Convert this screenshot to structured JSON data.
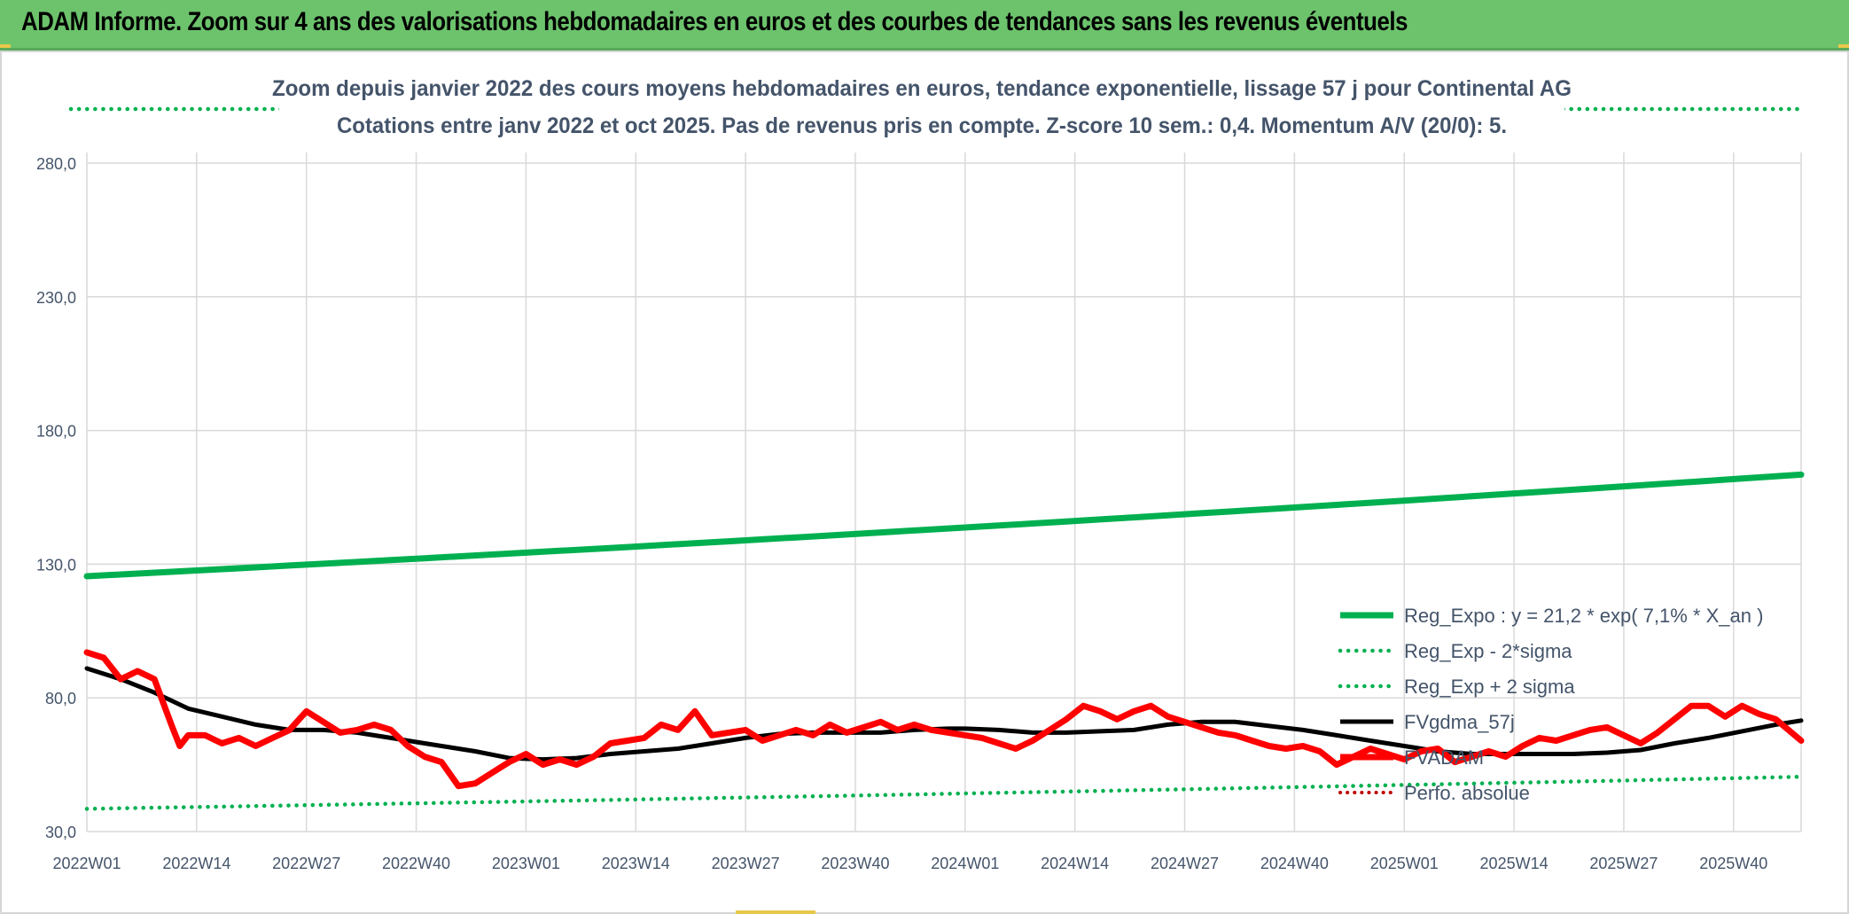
{
  "header": {
    "title": "ADAM Informe. Zoom sur 4 ans des valorisations hebdomadaires en euros et des courbes de tendances sans les revenus éventuels"
  },
  "colors": {
    "header_bg": "#6cc36c",
    "reg_expo": "#00b050",
    "fvadam": "#ff0000",
    "fvgdma": "#000000",
    "perfo": "#c00000",
    "text": "#44546a",
    "grid": "#d9d9d9"
  },
  "chart_data": {
    "type": "line",
    "title_line1": "Zoom depuis janvier 2022 des cours moyens hebdomadaires en euros, tendance exponentielle, lissage 57 j pour Continental AG",
    "title_line2": "Cotations entre janv 2022 et oct 2025. Pas de revenus pris en compte. Z-score 10 sem.: 0,4. Momentum A/V (20/0): 5.",
    "ylim": [
      30,
      305
    ],
    "yticks": [
      30,
      80,
      130,
      180,
      230,
      280
    ],
    "ytick_labels": [
      "30,0",
      "80,0",
      "130,0",
      "180,0",
      "230,0",
      "280,0"
    ],
    "xtick_labels": [
      "2022W01",
      "2022W14",
      "2022W27",
      "2022W40",
      "2023W01",
      "2023W14",
      "2023W27",
      "2023W40",
      "2024W01",
      "2024W14",
      "2024W27",
      "2024W40",
      "2025W01",
      "2025W14",
      "2025W27",
      "2025W40"
    ],
    "x_range_weeks": [
      0,
      203
    ],
    "legend_position": "bottom-right",
    "grid": "on",
    "series": [
      {
        "name": "Reg_Expo : y = 21,2 * exp( 7,1% *  X_an )",
        "style": "solid-thick",
        "x": [
          0,
          203
        ],
        "values": [
          125.5,
          163.5
        ]
      },
      {
        "name": "Reg_Exp - 2*sigma",
        "style": "dotted",
        "x": [
          0,
          203
        ],
        "values": [
          38.5,
          50.5
        ]
      },
      {
        "name": "Reg_Exp + 2 sigma",
        "style": "dotted",
        "x": [
          0,
          203
        ],
        "values": [
          297,
          297
        ]
      },
      {
        "name": "FVgdma_57j",
        "style": "solid",
        "x": [
          0,
          4,
          8,
          12,
          16,
          20,
          24,
          28,
          32,
          36,
          40,
          42,
          46,
          50,
          54,
          58,
          62,
          66,
          70,
          74,
          78,
          82,
          86,
          90,
          94,
          98,
          102,
          104,
          108,
          112,
          116,
          120,
          124,
          128,
          132,
          136,
          140,
          144,
          148,
          152,
          156,
          160,
          164,
          168,
          172,
          176,
          180,
          184,
          188,
          192,
          196,
          200,
          203
        ],
        "values": [
          91,
          87,
          82,
          76,
          73,
          70,
          68,
          68,
          67,
          65,
          63,
          62,
          60,
          57.5,
          57,
          57.5,
          59,
          60,
          61,
          63,
          65,
          66.5,
          67,
          67,
          67,
          68,
          68.5,
          68.5,
          68,
          67,
          67,
          67.5,
          68,
          70,
          71,
          71,
          69.5,
          68,
          66,
          64,
          62,
          60,
          59,
          59,
          59,
          59,
          59.5,
          60.5,
          63,
          65,
          67.5,
          70,
          71.5
        ]
      },
      {
        "name": "FVADAM",
        "style": "solid-thick",
        "x": [
          0,
          2,
          4,
          6,
          8,
          10,
          11,
          12,
          14,
          16,
          18,
          20,
          22,
          24,
          26,
          28,
          30,
          32,
          34,
          36,
          38,
          40,
          42,
          44,
          46,
          48,
          50,
          52,
          54,
          56,
          58,
          60,
          62,
          64,
          66,
          68,
          70,
          72,
          74,
          76,
          78,
          80,
          82,
          84,
          86,
          88,
          90,
          92,
          94,
          96,
          98,
          100,
          102,
          104,
          106,
          108,
          110,
          112,
          114,
          116,
          118,
          120,
          122,
          124,
          126,
          128,
          130,
          132,
          134,
          136,
          138,
          140,
          142,
          144,
          146,
          148,
          150,
          152,
          154,
          156,
          158,
          160,
          162,
          164,
          166,
          168,
          170,
          172,
          174,
          176,
          178,
          180,
          182,
          184,
          186,
          188,
          190,
          192,
          194,
          196,
          198,
          200,
          203
        ],
        "values": [
          97,
          95,
          87,
          90,
          87,
          70,
          62,
          66,
          66,
          63,
          65,
          62,
          65,
          68,
          75,
          71,
          67,
          68,
          70,
          68,
          62,
          58,
          56,
          47,
          48,
          52,
          56,
          59,
          55,
          57,
          55,
          58,
          63,
          64,
          65,
          70,
          68,
          75,
          66,
          67,
          68,
          64,
          66,
          68,
          66,
          70,
          67,
          69,
          71,
          68,
          70,
          68,
          67,
          66,
          65,
          63,
          61,
          64,
          68,
          72,
          77,
          75,
          72,
          75,
          77,
          73,
          71,
          69,
          67,
          66,
          64,
          62,
          61,
          62,
          60,
          55,
          58,
          61,
          59,
          57,
          60,
          61,
          56,
          58,
          60,
          58,
          62,
          65,
          64,
          66,
          68,
          69,
          66,
          63,
          67,
          72,
          77,
          77,
          73,
          77,
          74,
          72,
          64
        ]
      },
      {
        "name": "Perfo. absolue",
        "style": "dotted-red",
        "x": [],
        "values": []
      }
    ]
  }
}
